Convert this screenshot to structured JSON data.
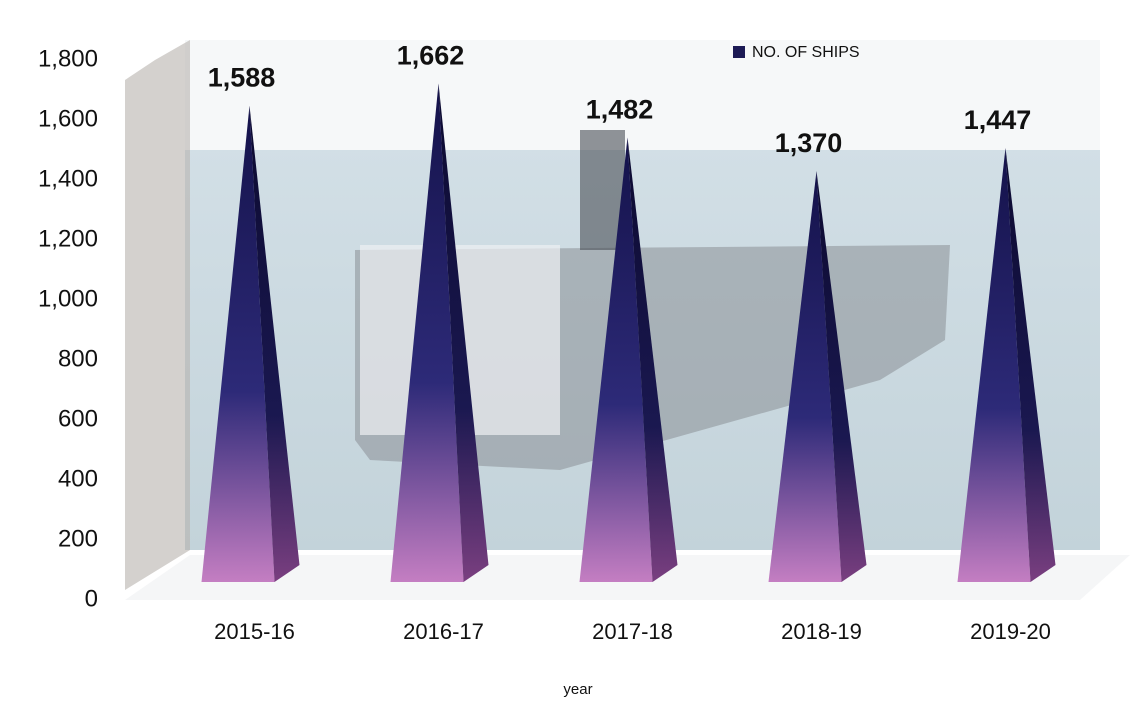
{
  "chart_data": {
    "type": "pyramid",
    "legend": "NO. OF SHIPS",
    "x_label": "year",
    "categories": [
      "2015-16",
      "2016-17",
      "2017-18",
      "2018-19",
      "2019-20"
    ],
    "values": [
      1588,
      1662,
      1482,
      1370,
      1447
    ],
    "value_labels": [
      "1,588",
      "1,662",
      "1,482",
      "1,370",
      "1,447"
    ],
    "color": "#1c1a55",
    "ylim": [
      0,
      1800
    ],
    "yticks": [
      0,
      200,
      400,
      600,
      800,
      {
        "value": 1000,
        "label": "1,000"
      },
      {
        "value": 1200,
        "label": "1,200"
      },
      {
        "value": 1400,
        "label": "1,400"
      },
      {
        "value": 1600,
        "label": "1,600"
      },
      {
        "value": 1800,
        "label": "1,800"
      }
    ]
  }
}
